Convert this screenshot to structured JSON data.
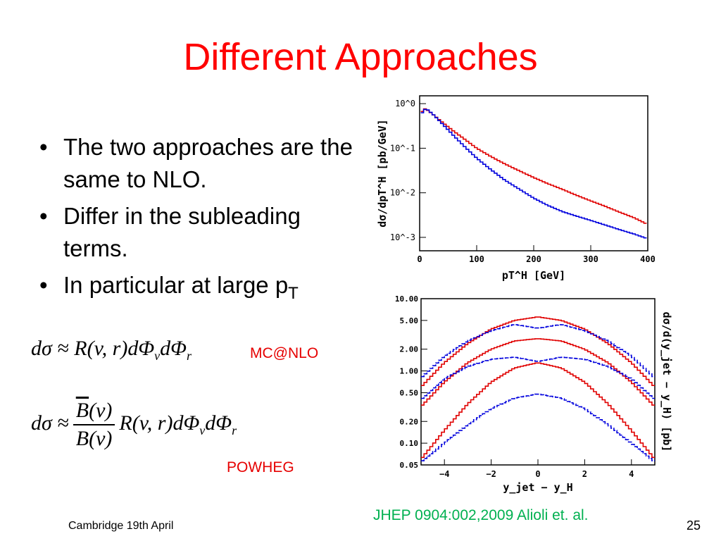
{
  "slide": {
    "title": "Different Approaches",
    "bullets": [
      "The two approaches are the same to NLO.",
      "Differ in the subleading terms.",
      "In particular at large p"
    ],
    "bullet3_sub": "T",
    "label_mcatnlo": "MC@NLO",
    "label_powheg": "POWHEG",
    "reference": "JHEP 0904:002,2009 Alioli et. al.",
    "footer": "Cambridge 19th April",
    "page_number": "25"
  },
  "formulas": {
    "mcatnlo": {
      "lhs": "dσ ≈ R(v, r)dΦ",
      "sub1": "v",
      "mid": "dΦ",
      "sub2": "r"
    },
    "powheg": {
      "lhs": "dσ ≈",
      "num_B": "B",
      "num_rest": "(v)",
      "den": "B(v)",
      "rhs": "R(v, r)dΦ",
      "sub1": "v",
      "mid": "dΦ",
      "sub2": "r"
    }
  },
  "chart_data": [
    {
      "type": "line",
      "xlabel": "pT^H [GeV]",
      "ylabel": "dσ/dpT^H [pb/GeV]",
      "xlim": [
        0,
        400
      ],
      "ylim": [
        0.0005,
        1.5
      ],
      "log_y": true,
      "x_ticks": [
        0,
        100,
        200,
        300,
        400
      ],
      "y_tick_labels": [
        "10^0",
        "10^-1",
        "10^-2",
        "10^-3"
      ],
      "series": [
        {
          "color": "#e00000",
          "x": [
            2,
            8,
            15,
            25,
            40,
            60,
            80,
            100,
            125,
            150,
            175,
            200,
            225,
            250,
            275,
            300,
            325,
            350,
            375,
            398
          ],
          "y": [
            0.6,
            0.78,
            0.7,
            0.55,
            0.38,
            0.24,
            0.155,
            0.1,
            0.065,
            0.044,
            0.031,
            0.022,
            0.016,
            0.012,
            0.0088,
            0.0066,
            0.005,
            0.0037,
            0.0028,
            0.002
          ]
        },
        {
          "color": "#0000dd",
          "x": [
            2,
            8,
            15,
            25,
            40,
            60,
            80,
            100,
            125,
            150,
            175,
            200,
            225,
            250,
            275,
            300,
            325,
            350,
            375,
            398
          ],
          "y": [
            0.55,
            0.75,
            0.72,
            0.55,
            0.35,
            0.19,
            0.105,
            0.06,
            0.033,
            0.019,
            0.012,
            0.0076,
            0.0052,
            0.0038,
            0.003,
            0.0024,
            0.0019,
            0.0015,
            0.0012,
            0.00095
          ]
        }
      ]
    },
    {
      "type": "line",
      "xlabel": "y_jet − y_H",
      "ylabel": "dσ/d(y_jet − y_H) [pb]",
      "xlim": [
        -5,
        5
      ],
      "ylim": [
        0.05,
        10
      ],
      "log_y": true,
      "x_ticks": [
        -4,
        -2,
        0,
        2,
        4
      ],
      "y_ticks": [
        10,
        5,
        2,
        1,
        0.5,
        0.2,
        0.1,
        0.05
      ],
      "y_tick_labels": [
        "10.00",
        "5.00",
        "2.00",
        "1.00",
        "0.50",
        "0.20",
        "0.10",
        "0.05"
      ],
      "series": [
        {
          "color": "#e00000",
          "x": [
            -5,
            -4,
            -3,
            -2,
            -1,
            0,
            1,
            2,
            3,
            4,
            5
          ],
          "y": [
            0.6,
            1.3,
            2.4,
            3.8,
            5.0,
            5.6,
            5.0,
            3.8,
            2.4,
            1.3,
            0.6
          ]
        },
        {
          "color": "#0000dd",
          "x": [
            -5,
            -4,
            -3,
            -2,
            -1,
            0,
            1,
            2,
            3,
            4,
            5
          ],
          "y": [
            0.8,
            1.6,
            2.6,
            3.6,
            4.4,
            3.9,
            4.4,
            3.6,
            2.6,
            1.6,
            0.8
          ]
        },
        {
          "color": "#e00000",
          "x": [
            -5,
            -4,
            -3,
            -2,
            -1,
            0,
            1,
            2,
            3,
            4,
            5
          ],
          "y": [
            0.32,
            0.7,
            1.3,
            2.0,
            2.6,
            2.8,
            2.6,
            2.0,
            1.3,
            0.7,
            0.32
          ]
        },
        {
          "color": "#0000dd",
          "x": [
            -5,
            -4,
            -3,
            -2,
            -1,
            0,
            1,
            2,
            3,
            4,
            5
          ],
          "y": [
            0.4,
            0.78,
            1.15,
            1.45,
            1.55,
            1.35,
            1.55,
            1.45,
            1.15,
            0.78,
            0.4
          ]
        },
        {
          "color": "#e00000",
          "x": [
            -5,
            -4,
            -3,
            -2,
            -1,
            0,
            1,
            2,
            3,
            4,
            5
          ],
          "y": [
            0.06,
            0.15,
            0.35,
            0.7,
            1.1,
            1.3,
            1.1,
            0.7,
            0.35,
            0.15,
            0.06
          ]
        },
        {
          "color": "#0000dd",
          "x": [
            -5,
            -4,
            -3,
            -2,
            -1,
            0,
            1,
            2,
            3,
            4,
            5
          ],
          "y": [
            0.055,
            0.1,
            0.18,
            0.3,
            0.42,
            0.48,
            0.42,
            0.3,
            0.18,
            0.1,
            0.055
          ]
        }
      ]
    }
  ]
}
